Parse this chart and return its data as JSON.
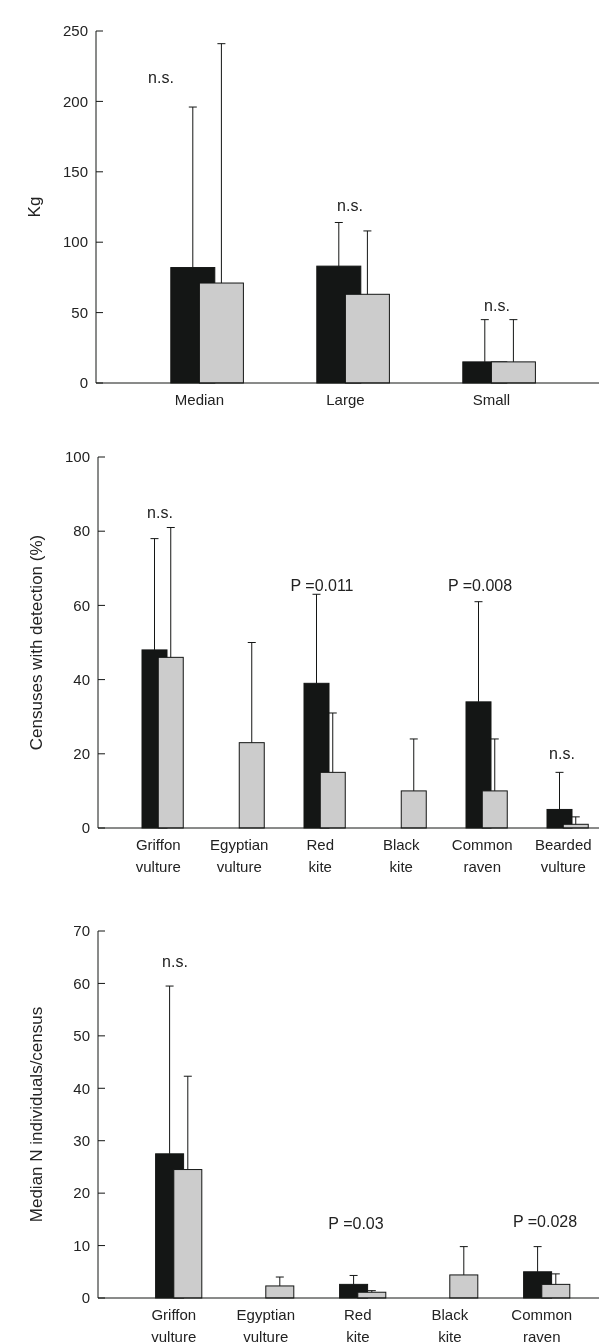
{
  "chart_data": [
    {
      "type": "bar",
      "ylabel": "Kg",
      "categories": [
        "Median",
        "Large",
        "Small"
      ],
      "series": [
        {
          "color": "#141615",
          "values": [
            82,
            83,
            15
          ],
          "errors": [
            [
              82,
              196
            ],
            [
              83,
              114
            ],
            [
              15,
              45
            ]
          ]
        },
        {
          "color": "#cccccc",
          "values": [
            71,
            63,
            15
          ],
          "errors": [
            [
              71,
              241
            ],
            [
              63,
              108
            ],
            [
              15,
              45
            ]
          ]
        }
      ],
      "ylim": [
        0,
        250
      ],
      "yticks": [
        0,
        50,
        100,
        150,
        200,
        250
      ],
      "annotations": [
        "n.s.",
        "n.s.",
        "n.s."
      ]
    },
    {
      "type": "bar",
      "ylabel": "Censuses with detection (%)",
      "categories": [
        "Griffon\nvulture",
        "Egyptian\nvulture",
        "Red\nkite",
        "Black\nkite",
        "Common\nraven",
        "Bearded\nvulture"
      ],
      "series": [
        {
          "color": "#141615",
          "values": [
            48,
            null,
            39,
            null,
            34,
            5
          ],
          "errors": [
            [
              48,
              78
            ],
            null,
            [
              39,
              63
            ],
            null,
            [
              34,
              61
            ],
            [
              5,
              15
            ]
          ]
        },
        {
          "color": "#cccccc",
          "values": [
            46,
            23,
            15,
            10,
            10,
            1
          ],
          "errors": [
            [
              46,
              81
            ],
            [
              23,
              50
            ],
            [
              15,
              31
            ],
            [
              10,
              24
            ],
            [
              10,
              24
            ],
            [
              1,
              3
            ]
          ]
        }
      ],
      "ylim": [
        0,
        100
      ],
      "yticks": [
        0,
        20,
        40,
        60,
        80,
        100
      ],
      "annotations": [
        "n.s.",
        "P =0.011",
        "P =0.008",
        "n.s."
      ]
    },
    {
      "type": "bar",
      "ylabel": "Median N individuals/census",
      "categories": [
        "Griffon\nvulture",
        "Egyptian\nvulture",
        "Red\nkite",
        "Black\nkite",
        "Common\nraven"
      ],
      "series": [
        {
          "color": "#141615",
          "values": [
            27.5,
            null,
            2.6,
            null,
            5
          ],
          "errors": [
            [
              27.5,
              59.5
            ],
            null,
            [
              2.6,
              4.3
            ],
            null,
            [
              5,
              9.8
            ]
          ]
        },
        {
          "color": "#cccccc",
          "values": [
            24.5,
            2.3,
            1.1,
            4.4,
            2.6
          ],
          "errors": [
            [
              24.5,
              42.3
            ],
            [
              2.3,
              4
            ],
            [
              1.1,
              1.4
            ],
            [
              4.4,
              9.8
            ],
            [
              2.6,
              4.6
            ]
          ]
        }
      ],
      "ylim": [
        0,
        70
      ],
      "yticks": [
        0,
        10,
        20,
        30,
        40,
        50,
        60,
        70
      ],
      "annotations": [
        "n.s.",
        "P =0.03",
        "P =0.028"
      ]
    }
  ]
}
